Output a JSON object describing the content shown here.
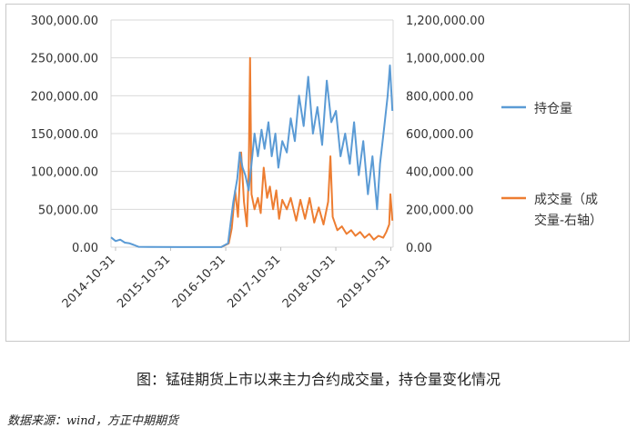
{
  "chart_data": {
    "type": "line",
    "title": "",
    "caption": "图：锰硅期货上市以来主力合约成交量，持仓量变化情况",
    "source": "数据来源：wind，方正中期期货",
    "x_ticks": [
      "2014-10-31",
      "2015-10-31",
      "2016-10-31",
      "2017-10-31",
      "2018-10-31",
      "2019-10-31"
    ],
    "y_left_ticks": [
      "300,000.00",
      "250,000.00",
      "200,000.00",
      "150,000.00",
      "100,000.00",
      "50,000.00",
      "0.00"
    ],
    "y_right_ticks": [
      "1,200,000.00",
      "1,000,000.00",
      "800,000.00",
      "600,000.00",
      "400,000.00",
      "200,000.00",
      "0.00"
    ],
    "ylim_left": [
      0,
      300000
    ],
    "ylim_right": [
      0,
      1200000
    ],
    "xlim": [
      "2014-10-01",
      "2019-11-15"
    ],
    "legend_position": "right",
    "grid": "horizontal",
    "series": [
      {
        "name": "持仓量",
        "axis": "left",
        "color": "#5b9bd5",
        "points": [
          [
            "2014-10-01",
            13000
          ],
          [
            "2014-11-01",
            8000
          ],
          [
            "2014-12-01",
            10000
          ],
          [
            "2015-01-01",
            6000
          ],
          [
            "2015-02-01",
            5000
          ],
          [
            "2015-03-01",
            3000
          ],
          [
            "2015-04-01",
            500
          ],
          [
            "2015-06-01",
            200
          ],
          [
            "2016-01-01",
            100
          ],
          [
            "2016-10-01",
            100
          ],
          [
            "2016-11-15",
            5000
          ],
          [
            "2016-12-01",
            30000
          ],
          [
            "2016-12-20",
            60000
          ],
          [
            "2017-01-15",
            90000
          ],
          [
            "2017-02-01",
            125000
          ],
          [
            "2017-02-20",
            105000
          ],
          [
            "2017-03-10",
            95000
          ],
          [
            "2017-04-01",
            75000
          ],
          [
            "2017-04-20",
            110000
          ],
          [
            "2017-05-10",
            150000
          ],
          [
            "2017-06-01",
            120000
          ],
          [
            "2017-06-25",
            155000
          ],
          [
            "2017-07-15",
            130000
          ],
          [
            "2017-08-10",
            165000
          ],
          [
            "2017-09-01",
            120000
          ],
          [
            "2017-09-25",
            150000
          ],
          [
            "2017-10-15",
            105000
          ],
          [
            "2017-11-10",
            140000
          ],
          [
            "2017-12-10",
            125000
          ],
          [
            "2018-01-05",
            170000
          ],
          [
            "2018-02-01",
            140000
          ],
          [
            "2018-03-01",
            200000
          ],
          [
            "2018-04-01",
            160000
          ],
          [
            "2018-05-01",
            225000
          ],
          [
            "2018-06-01",
            150000
          ],
          [
            "2018-07-01",
            185000
          ],
          [
            "2018-08-01",
            135000
          ],
          [
            "2018-09-01",
            220000
          ],
          [
            "2018-10-01",
            165000
          ],
          [
            "2018-11-01",
            180000
          ],
          [
            "2018-12-01",
            120000
          ],
          [
            "2019-01-01",
            150000
          ],
          [
            "2019-02-01",
            110000
          ],
          [
            "2019-03-01",
            165000
          ],
          [
            "2019-04-01",
            95000
          ],
          [
            "2019-05-01",
            140000
          ],
          [
            "2019-06-01",
            70000
          ],
          [
            "2019-07-01",
            120000
          ],
          [
            "2019-08-01",
            50000
          ],
          [
            "2019-08-20",
            110000
          ],
          [
            "2019-09-15",
            155000
          ],
          [
            "2019-10-10",
            200000
          ],
          [
            "2019-10-25",
            240000
          ],
          [
            "2019-11-10",
            180000
          ]
        ]
      },
      {
        "name": "成交量（成交量-右轴）",
        "axis": "right",
        "color": "#ed7d31",
        "points": [
          [
            "2016-10-01",
            0
          ],
          [
            "2016-11-20",
            20000
          ],
          [
            "2016-12-10",
            100000
          ],
          [
            "2017-01-01",
            300000
          ],
          [
            "2017-01-20",
            160000
          ],
          [
            "2017-02-10",
            500000
          ],
          [
            "2017-03-01",
            240000
          ],
          [
            "2017-03-20",
            110000
          ],
          [
            "2017-04-01",
            390000
          ],
          [
            "2017-04-10",
            1000000
          ],
          [
            "2017-04-20",
            280000
          ],
          [
            "2017-05-10",
            200000
          ],
          [
            "2017-06-01",
            260000
          ],
          [
            "2017-06-20",
            180000
          ],
          [
            "2017-07-10",
            420000
          ],
          [
            "2017-08-01",
            260000
          ],
          [
            "2017-08-20",
            320000
          ],
          [
            "2017-09-10",
            200000
          ],
          [
            "2017-10-01",
            300000
          ],
          [
            "2017-10-20",
            150000
          ],
          [
            "2017-11-10",
            250000
          ],
          [
            "2017-12-10",
            200000
          ],
          [
            "2018-01-05",
            260000
          ],
          [
            "2018-02-10",
            140000
          ],
          [
            "2018-03-10",
            250000
          ],
          [
            "2018-04-10",
            150000
          ],
          [
            "2018-05-10",
            260000
          ],
          [
            "2018-06-10",
            130000
          ],
          [
            "2018-07-10",
            210000
          ],
          [
            "2018-08-10",
            120000
          ],
          [
            "2018-09-10",
            240000
          ],
          [
            "2018-09-25",
            480000
          ],
          [
            "2018-10-10",
            160000
          ],
          [
            "2018-11-10",
            90000
          ],
          [
            "2018-12-10",
            110000
          ],
          [
            "2019-01-10",
            70000
          ],
          [
            "2019-02-10",
            90000
          ],
          [
            "2019-03-10",
            60000
          ],
          [
            "2019-04-10",
            80000
          ],
          [
            "2019-05-10",
            50000
          ],
          [
            "2019-06-10",
            70000
          ],
          [
            "2019-07-10",
            40000
          ],
          [
            "2019-08-10",
            60000
          ],
          [
            "2019-09-10",
            50000
          ],
          [
            "2019-10-01",
            80000
          ],
          [
            "2019-10-20",
            120000
          ],
          [
            "2019-10-28",
            280000
          ],
          [
            "2019-11-10",
            140000
          ]
        ]
      }
    ]
  }
}
